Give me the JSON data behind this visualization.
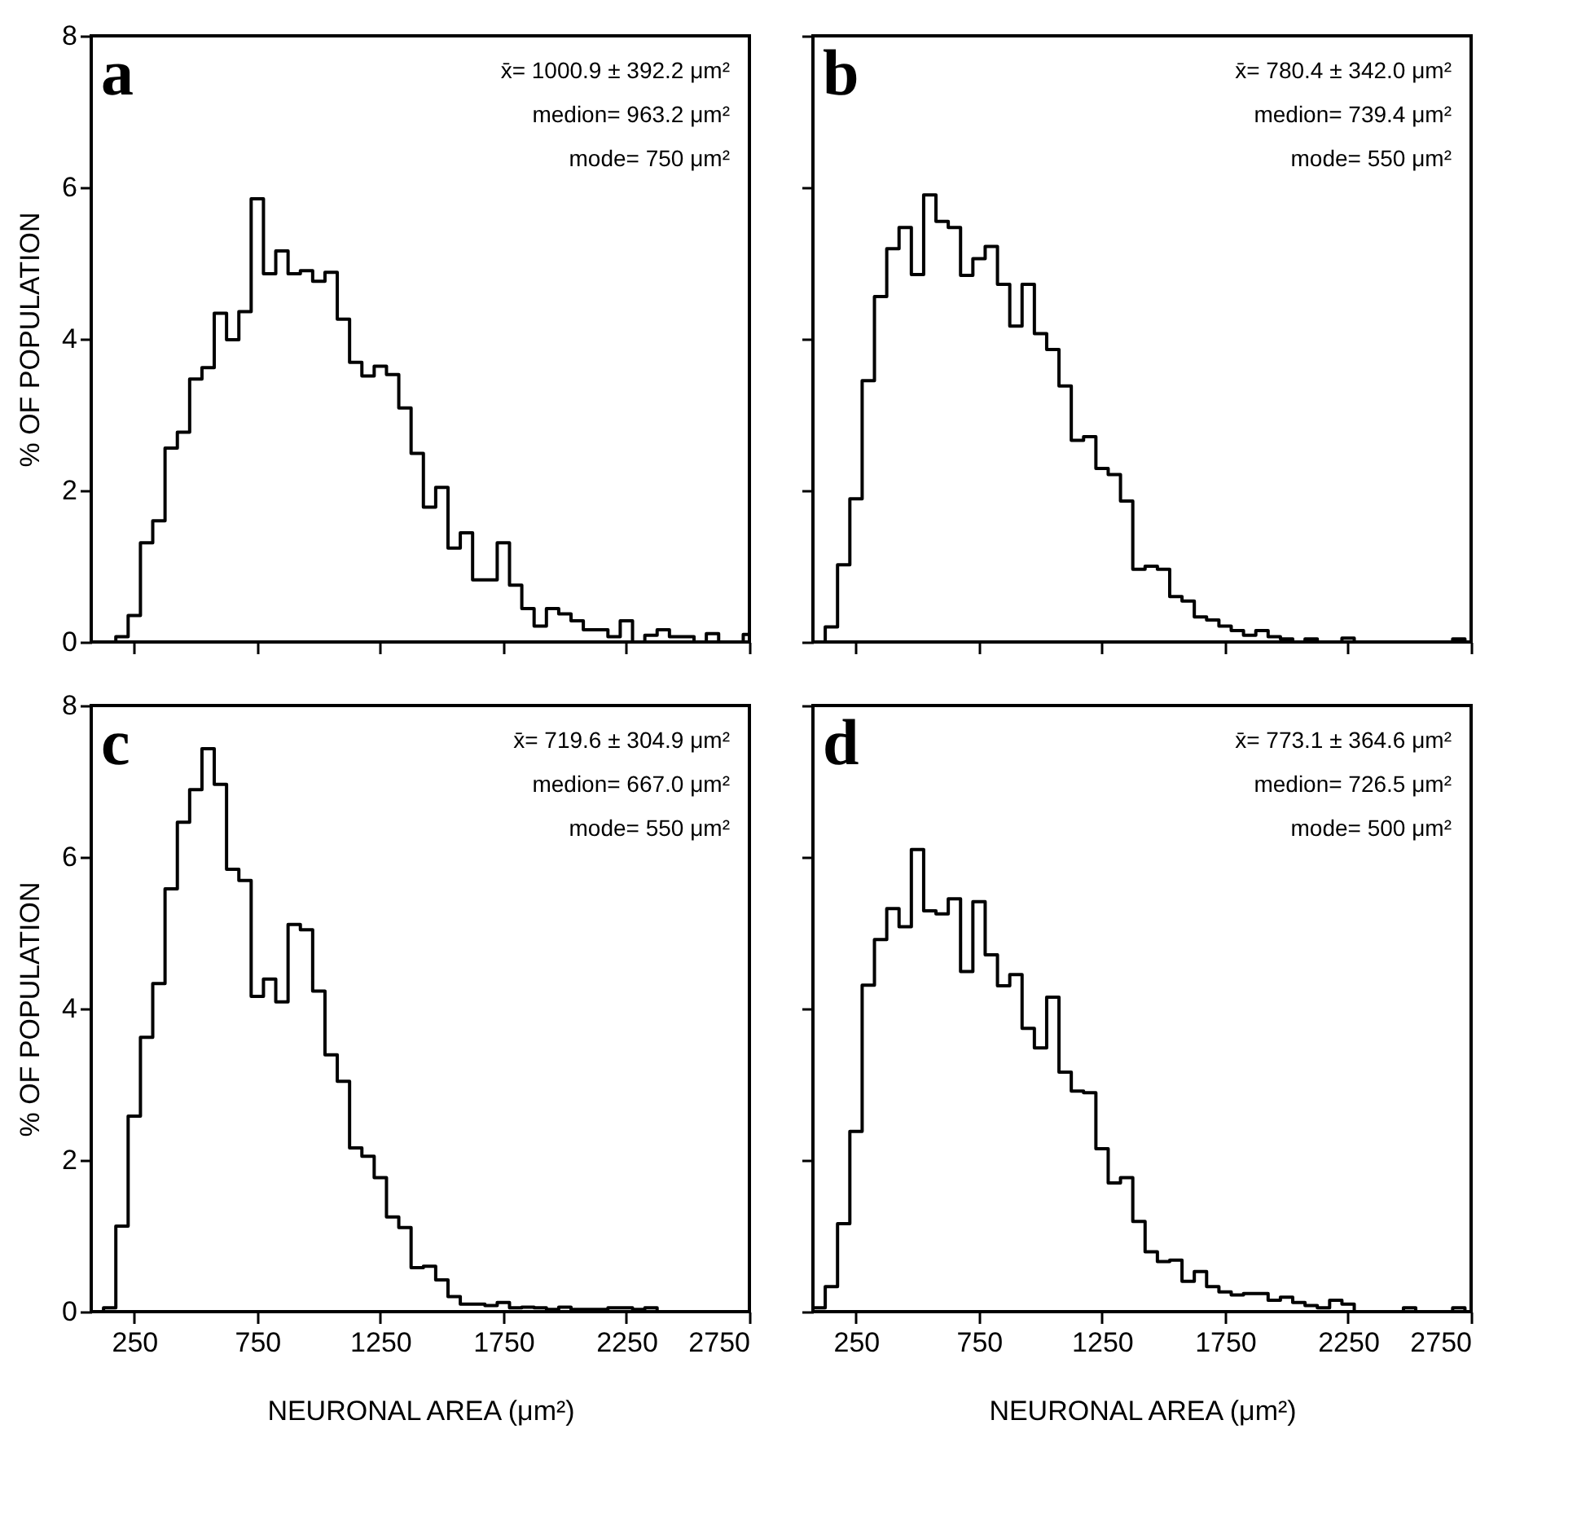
{
  "chart_data": [
    {
      "type": "histogram",
      "title": "a",
      "ylabel": "% OF POPULATION",
      "color": "#000000",
      "xlim": [
        75,
        2750
      ],
      "ylim": [
        0,
        8
      ],
      "xticks": [
        250,
        750,
        1250,
        1750,
        2250,
        2750
      ],
      "yticks": [
        0,
        2,
        4,
        6,
        8
      ],
      "tick_labels": "y",
      "annotations": [
        "x̄= 1000.9 ± 392.2 μm²",
        "medion= 963.2 μm²",
        "mode= 750 μm²"
      ],
      "bins": [
        175,
        225,
        275,
        325,
        375,
        425,
        475,
        525,
        575,
        625,
        675,
        725,
        775,
        825,
        875,
        925,
        975,
        1025,
        1075,
        1125,
        1175,
        1225,
        1275,
        1325,
        1375,
        1425,
        1475,
        1525,
        1575,
        1625,
        1675,
        1725,
        1775,
        1825,
        1875,
        1925,
        1975,
        2025,
        2075,
        2125,
        2175,
        2225,
        2275,
        2325,
        2375,
        2425,
        2475,
        2525,
        2575,
        2625,
        2675,
        2725,
        2750
      ],
      "values": [
        0.07,
        0.35,
        1.31,
        1.6,
        2.56,
        2.77,
        3.47,
        3.62,
        4.34,
        3.99,
        4.36,
        5.85,
        4.86,
        5.16,
        4.86,
        4.9,
        4.76,
        4.88,
        4.26,
        3.69,
        3.51,
        3.64,
        3.53,
        3.09,
        2.49,
        1.78,
        2.04,
        1.24,
        1.44,
        0.82,
        0.82,
        1.31,
        0.75,
        0.44,
        0.21,
        0.44,
        0.37,
        0.28,
        0.16,
        0.16,
        0.07,
        0.28,
        0,
        0.09,
        0.16,
        0.07,
        0.07,
        0,
        0.11,
        0,
        0,
        0.1
      ]
    },
    {
      "type": "histogram",
      "title": "b",
      "color": "#000000",
      "xlim": [
        75,
        2750
      ],
      "ylim": [
        0,
        8
      ],
      "xticks": [
        250,
        750,
        1250,
        1750,
        2250,
        2750
      ],
      "yticks": [
        0,
        2,
        4,
        6,
        8
      ],
      "tick_labels": false,
      "annotations": [
        "x̄= 780.4 ± 342.0 μm²",
        "medion= 739.4 μm²",
        "mode= 550 μm²"
      ],
      "bins": [
        125,
        175,
        225,
        275,
        325,
        375,
        425,
        475,
        525,
        575,
        625,
        675,
        725,
        775,
        825,
        875,
        925,
        975,
        1025,
        1075,
        1125,
        1175,
        1225,
        1275,
        1325,
        1375,
        1425,
        1475,
        1525,
        1575,
        1625,
        1675,
        1725,
        1775,
        1825,
        1875,
        1925,
        1975,
        2025,
        2075,
        2125,
        2175,
        2225,
        2275,
        2325,
        2375,
        2425,
        2475,
        2525,
        2575,
        2625,
        2675,
        2725
      ],
      "values": [
        0.2,
        1.02,
        1.89,
        3.45,
        4.56,
        5.19,
        5.47,
        4.85,
        5.9,
        5.55,
        5.47,
        4.84,
        5.06,
        5.22,
        4.72,
        4.17,
        4.72,
        4.07,
        3.86,
        3.38,
        2.66,
        2.71,
        2.29,
        2.21,
        1.86,
        0.96,
        1.0,
        0.96,
        0.6,
        0.54,
        0.33,
        0.29,
        0.21,
        0.15,
        0.09,
        0.15,
        0.07,
        0.04,
        0,
        0.04,
        0,
        0,
        0.05,
        0,
        0,
        0,
        0,
        0,
        0,
        0,
        0,
        0.04
      ]
    },
    {
      "type": "histogram",
      "title": "c",
      "xlabel": "NEURONAL AREA (μm²)",
      "ylabel": "% OF POPULATION",
      "color": "#000000",
      "xlim": [
        75,
        2750
      ],
      "ylim": [
        0,
        8
      ],
      "xticks": [
        250,
        750,
        1250,
        1750,
        2250,
        2750
      ],
      "yticks": [
        0,
        2,
        4,
        6,
        8
      ],
      "annotations": [
        "x̄= 719.6 ± 304.9 μm²",
        "medion= 667.0 μm²",
        "mode= 550 μm²"
      ],
      "bins": [
        125,
        175,
        225,
        275,
        325,
        375,
        425,
        475,
        525,
        575,
        625,
        675,
        725,
        775,
        825,
        875,
        925,
        975,
        1025,
        1075,
        1125,
        1175,
        1225,
        1275,
        1325,
        1375,
        1425,
        1475,
        1525,
        1575,
        1625,
        1675,
        1725,
        1775,
        1825,
        1875,
        1925,
        1975,
        2025,
        2075,
        2125,
        2175,
        2225,
        2275,
        2325,
        2375,
        2425,
        2475,
        2525,
        2575,
        2625,
        2675,
        2725
      ],
      "values": [
        0.05,
        1.13,
        2.58,
        3.62,
        4.33,
        5.58,
        6.46,
        6.89,
        7.43,
        6.96,
        5.84,
        5.69,
        4.16,
        4.39,
        4.09,
        5.11,
        5.04,
        4.23,
        3.39,
        3.04,
        2.16,
        2.05,
        1.77,
        1.25,
        1.11,
        0.58,
        0.6,
        0.42,
        0.2,
        0.1,
        0.1,
        0.08,
        0.12,
        0.05,
        0.06,
        0.05,
        0.03,
        0.06,
        0.03,
        0.03,
        0.03,
        0.05,
        0.05,
        0.03,
        0.05,
        0,
        0,
        0,
        0,
        0,
        0,
        0
      ]
    },
    {
      "type": "histogram",
      "title": "d",
      "xlabel": "NEURONAL AREA (μm²)",
      "color": "#000000",
      "xlim": [
        75,
        2750
      ],
      "ylim": [
        0,
        8
      ],
      "xticks": [
        250,
        750,
        1250,
        1750,
        2250,
        2750
      ],
      "yticks": [
        0,
        2,
        4,
        6,
        8
      ],
      "tick_labels": "x",
      "annotations": [
        "x̄= 773.1 ± 364.6 μm²",
        "medion= 726.5 μm²",
        "mode= 500 μm²"
      ],
      "bins": [
        75,
        125,
        175,
        225,
        275,
        325,
        375,
        425,
        475,
        525,
        575,
        625,
        675,
        725,
        775,
        825,
        875,
        925,
        975,
        1025,
        1075,
        1125,
        1175,
        1225,
        1275,
        1325,
        1375,
        1425,
        1475,
        1525,
        1575,
        1625,
        1675,
        1725,
        1775,
        1825,
        1875,
        1925,
        1975,
        2025,
        2075,
        2125,
        2175,
        2225,
        2275,
        2325,
        2375,
        2425,
        2475,
        2525,
        2575,
        2625,
        2675,
        2725
      ],
      "values": [
        0.05,
        0.33,
        1.16,
        2.38,
        4.31,
        4.91,
        5.32,
        5.08,
        6.1,
        5.29,
        5.25,
        5.45,
        4.49,
        5.41,
        4.71,
        4.3,
        4.45,
        3.74,
        3.48,
        4.15,
        3.16,
        2.91,
        2.89,
        2.15,
        1.7,
        1.77,
        1.19,
        0.79,
        0.66,
        0.68,
        0.4,
        0.53,
        0.33,
        0.26,
        0.22,
        0.24,
        0.24,
        0.15,
        0.19,
        0.12,
        0.08,
        0.05,
        0.15,
        0.1,
        0,
        0,
        0,
        0,
        0.05,
        0,
        0,
        0,
        0.05
      ]
    }
  ]
}
